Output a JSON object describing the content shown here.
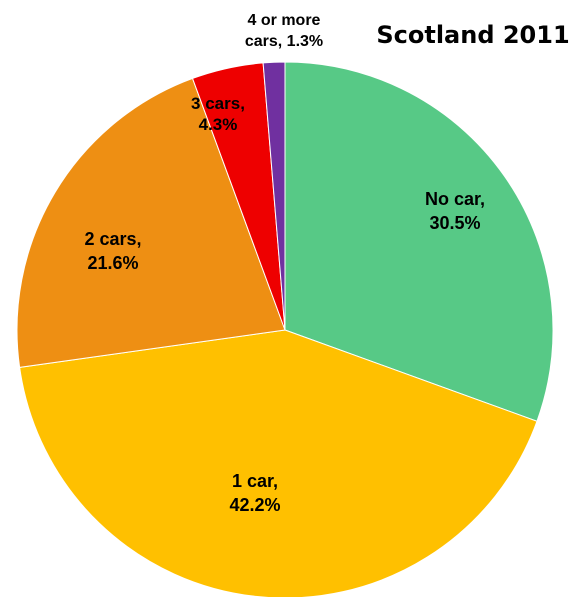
{
  "chart_data": {
    "type": "pie",
    "title": "Scotland 2011",
    "categories": [
      "No car",
      "1 car",
      "2 cars",
      "3 cars",
      "4 or more cars"
    ],
    "values": [
      30.5,
      42.2,
      21.6,
      4.3,
      1.3
    ],
    "slice_labels": [
      [
        "No car,",
        "30.5%"
      ],
      [
        "1 car,",
        "42.2%"
      ],
      [
        "2 cars,",
        "21.6%"
      ],
      [
        "3 cars,",
        "4.3%"
      ],
      [
        "4 or more",
        "cars, 1.3%"
      ]
    ],
    "colors": [
      "#57C986",
      "#FFC000",
      "#EE8F13",
      "#EE0000",
      "#7030A0"
    ],
    "start_angle_deg": 0,
    "direction": "clockwise",
    "legend": "none"
  }
}
